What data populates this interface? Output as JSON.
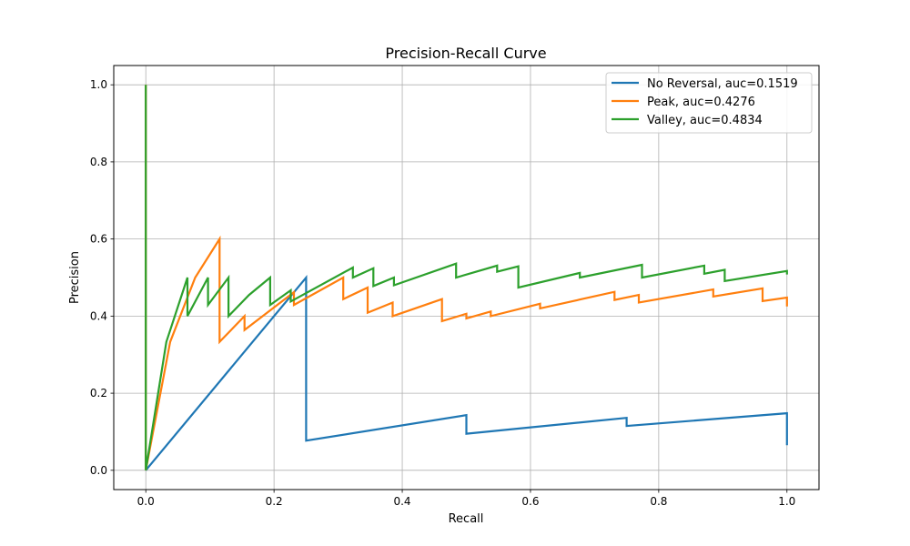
{
  "chart_data": {
    "type": "line",
    "title": "Precision-Recall Curve",
    "xlabel": "Recall",
    "ylabel": "Precision",
    "xlim": [
      -0.05,
      1.05
    ],
    "ylim": [
      -0.05,
      1.05
    ],
    "xticks": [
      0.0,
      0.2,
      0.4,
      0.6,
      0.8,
      1.0
    ],
    "yticks": [
      0.0,
      0.2,
      0.4,
      0.6,
      0.8,
      1.0
    ],
    "xtick_labels": [
      "0.0",
      "0.2",
      "0.4",
      "0.6",
      "0.8",
      "1.0"
    ],
    "ytick_labels": [
      "0.0",
      "0.2",
      "0.4",
      "0.6",
      "0.8",
      "1.0"
    ],
    "grid": true,
    "legend_position": "top-right",
    "series": [
      {
        "name": "No Reversal, auc=0.1519",
        "color": "#1f77b4",
        "x": [
          0.0,
          0.25,
          0.25,
          0.5,
          0.5,
          0.75,
          0.75,
          1.0,
          1.0
        ],
        "y": [
          0.0,
          0.5,
          0.077,
          0.143,
          0.095,
          0.136,
          0.115,
          0.148,
          0.065
        ]
      },
      {
        "name": "Peak, auc=0.4276",
        "color": "#ff7f0e",
        "x": [
          0.0,
          0.0,
          0.038,
          0.077,
          0.115,
          0.115,
          0.154,
          0.154,
          0.231,
          0.231,
          0.308,
          0.308,
          0.346,
          0.346,
          0.385,
          0.385,
          0.462,
          0.462,
          0.5,
          0.5,
          0.538,
          0.538,
          0.615,
          0.615,
          0.731,
          0.731,
          0.769,
          0.769,
          0.885,
          0.885,
          0.962,
          0.962,
          1.0,
          1.0
        ],
        "y": [
          1.0,
          0.0,
          0.333,
          0.5,
          0.6,
          0.333,
          0.4,
          0.364,
          0.462,
          0.429,
          0.5,
          0.444,
          0.474,
          0.409,
          0.435,
          0.4,
          0.444,
          0.387,
          0.406,
          0.394,
          0.412,
          0.4,
          0.432,
          0.42,
          0.463,
          0.442,
          0.455,
          0.435,
          0.469,
          0.451,
          0.472,
          0.439,
          0.448,
          0.425
        ]
      },
      {
        "name": "Valley, auc=0.4834",
        "color": "#2ca02c",
        "x": [
          0.0,
          0.0,
          0.032,
          0.065,
          0.065,
          0.097,
          0.097,
          0.129,
          0.129,
          0.161,
          0.194,
          0.194,
          0.226,
          0.226,
          0.323,
          0.323,
          0.355,
          0.355,
          0.387,
          0.387,
          0.484,
          0.484,
          0.548,
          0.548,
          0.581,
          0.581,
          0.677,
          0.677,
          0.774,
          0.774,
          0.871,
          0.871,
          0.903,
          0.903,
          1.0,
          1.0
        ],
        "y": [
          1.0,
          0.0,
          0.333,
          0.5,
          0.4,
          0.5,
          0.429,
          0.5,
          0.4,
          0.455,
          0.5,
          0.429,
          0.467,
          0.438,
          0.526,
          0.5,
          0.524,
          0.478,
          0.5,
          0.48,
          0.536,
          0.5,
          0.531,
          0.515,
          0.529,
          0.474,
          0.512,
          0.5,
          0.533,
          0.5,
          0.531,
          0.51,
          0.52,
          0.491,
          0.517,
          0.508
        ]
      }
    ]
  }
}
